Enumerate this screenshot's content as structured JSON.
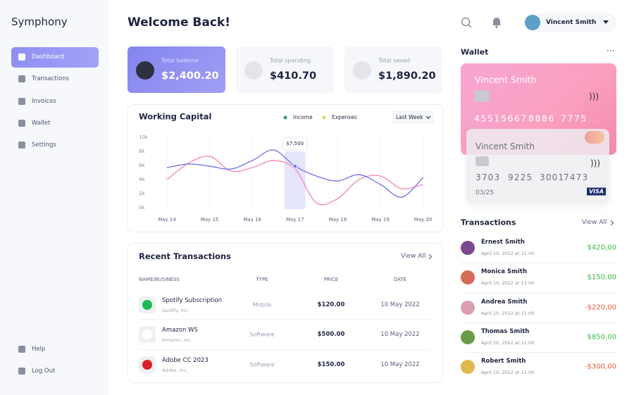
{
  "sidebar": {
    "brand": "Symphony",
    "nav": [
      "Dashboard",
      "Transactions",
      "Invoices",
      "Wallet",
      "Settings"
    ],
    "footer": [
      "Help",
      "Log Out"
    ]
  },
  "header": {
    "title": "Welcome Back!",
    "user": "Vincent Smith"
  },
  "stats": [
    {
      "label": "Total balance",
      "value": "$2,400.20"
    },
    {
      "label": "Total spending",
      "value": "$410.70"
    },
    {
      "label": "Total saved",
      "value": "$1,890.20"
    }
  ],
  "chart_data": {
    "type": "line",
    "title": "Working Capital",
    "filter": "Last Week",
    "annotation": "$7,500",
    "categories": [
      "May 14",
      null,
      "May 15",
      null,
      "May 16",
      null,
      "May 17",
      null,
      "May 18",
      null,
      "May 19",
      null,
      "May 20"
    ],
    "series": [
      {
        "name": "Income",
        "color": "#7c79e9",
        "legend_color": "#27a47f",
        "values": [
          5.7,
          6.2,
          5.9,
          5.5,
          6.7,
          8.2,
          5.9,
          4.5,
          3.8,
          4.7,
          3.3,
          1.5,
          4.3
        ]
      },
      {
        "name": "Expenses",
        "color": "#f48cb8",
        "legend_color": "#c8e35b",
        "values": [
          4,
          6.3,
          7.3,
          5.2,
          5.7,
          6.7,
          5.5,
          0.7,
          1.3,
          4,
          4.5,
          2.7,
          3.3
        ]
      }
    ],
    "ylim": [
      0,
      10
    ],
    "yticks": [
      {
        "value": 0,
        "label": "0k"
      },
      {
        "value": 2,
        "label": "2k"
      },
      {
        "value": 4,
        "label": "4k"
      },
      {
        "value": 6,
        "label": "6k"
      },
      {
        "value": 8,
        "label": "8k"
      },
      {
        "value": 10,
        "label": "10k"
      }
    ],
    "grid": true
  },
  "recent": {
    "title": "Recent Transactions",
    "link": "View All",
    "columns": [
      "NAME/BUSINESS",
      "TYPE",
      "PRICE",
      "DATE"
    ],
    "rows": [
      {
        "name": "Spotify Subscription",
        "company": "Spotify, Inc.",
        "type": "Mobile",
        "price": "$120.00",
        "date": "10 May 2022"
      },
      {
        "name": "Amazon WS",
        "company": "Amazon, Inc.",
        "type": "Software",
        "price": "$500.00",
        "date": "10 May 2022"
      },
      {
        "name": "Adobe CC 2023",
        "company": "Adobe, Inc.",
        "type": "Software",
        "price": "$150.00",
        "date": "10 May 2022"
      }
    ]
  },
  "wallet": {
    "title": "Wallet",
    "cards": [
      {
        "holder": "Vincent Smith",
        "number": [
          "4551",
          "5667",
          "8886",
          "7775"
        ]
      },
      {
        "holder": "Vincent Smith",
        "number": [
          "3703",
          "9225",
          "3001",
          "7473"
        ],
        "expiry": "03/25",
        "brand": "VISA"
      }
    ]
  },
  "transactions": {
    "title": "Transactions",
    "link": "View All",
    "items": [
      {
        "name": "Ernest Smith",
        "date": "April 10, 2022 at 11:00",
        "amount": "$420,00"
      },
      {
        "name": "Monica Smith",
        "date": "April 10, 2022 at 11:00",
        "amount": "$150,00"
      },
      {
        "name": "Andrea Smith",
        "date": "April 10, 2022 at 11:00",
        "amount": "-$220,00"
      },
      {
        "name": "Thomas Smith",
        "date": "April 10, 2022 at 11:00",
        "amount": "$850,00"
      },
      {
        "name": "Robert Smith",
        "date": "April 10, 2022 at 11:00",
        "amount": "-$300,00"
      }
    ]
  }
}
